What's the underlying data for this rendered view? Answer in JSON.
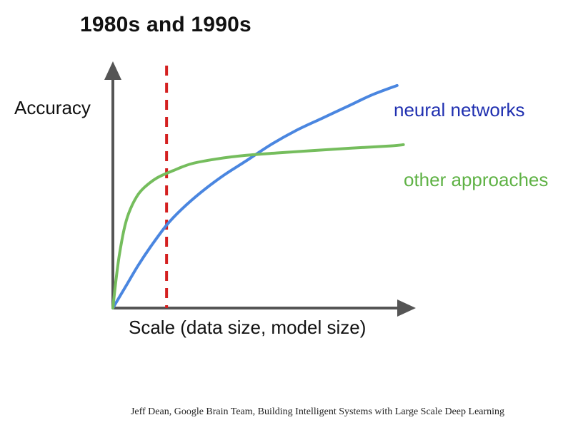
{
  "slide": {
    "title": "1980s and 1990s",
    "caption": "Jeff Dean, Google Brain Team, Building Intelligent Systems with Large Scale Deep Learning"
  },
  "chart_data": {
    "type": "line",
    "title": "1980s and 1990s",
    "xlabel": "Scale (data size, model size)",
    "ylabel": "Accuracy",
    "xlim": [
      0,
      1
    ],
    "ylim": [
      0,
      1
    ],
    "grid": false,
    "axis_ticks": false,
    "legend": "inline labels at line ends",
    "reference_line": {
      "orientation": "vertical",
      "x": 0.17,
      "style": "dashed",
      "color": "#d42020"
    },
    "series": [
      {
        "name": "neural networks",
        "color": "#4a86e0",
        "label_color": "#1f2fb0",
        "x": [
          0,
          0.04,
          0.08,
          0.12,
          0.17,
          0.22,
          0.28,
          0.35,
          0.42,
          0.5,
          0.58,
          0.66,
          0.74,
          0.82,
          0.9
        ],
        "y": [
          0,
          0.09,
          0.18,
          0.26,
          0.35,
          0.42,
          0.49,
          0.56,
          0.62,
          0.69,
          0.75,
          0.8,
          0.85,
          0.9,
          0.94
        ]
      },
      {
        "name": "other approaches",
        "color": "#75bd5d",
        "label_color": "#5fb245",
        "x": [
          0,
          0.01,
          0.02,
          0.035,
          0.05,
          0.075,
          0.1,
          0.14,
          0.19,
          0.25,
          0.33,
          0.42,
          0.52,
          0.63,
          0.75,
          0.88,
          0.92
        ],
        "y": [
          0,
          0.12,
          0.22,
          0.33,
          0.4,
          0.47,
          0.51,
          0.55,
          0.58,
          0.61,
          0.63,
          0.645,
          0.655,
          0.665,
          0.675,
          0.685,
          0.69
        ]
      }
    ]
  }
}
